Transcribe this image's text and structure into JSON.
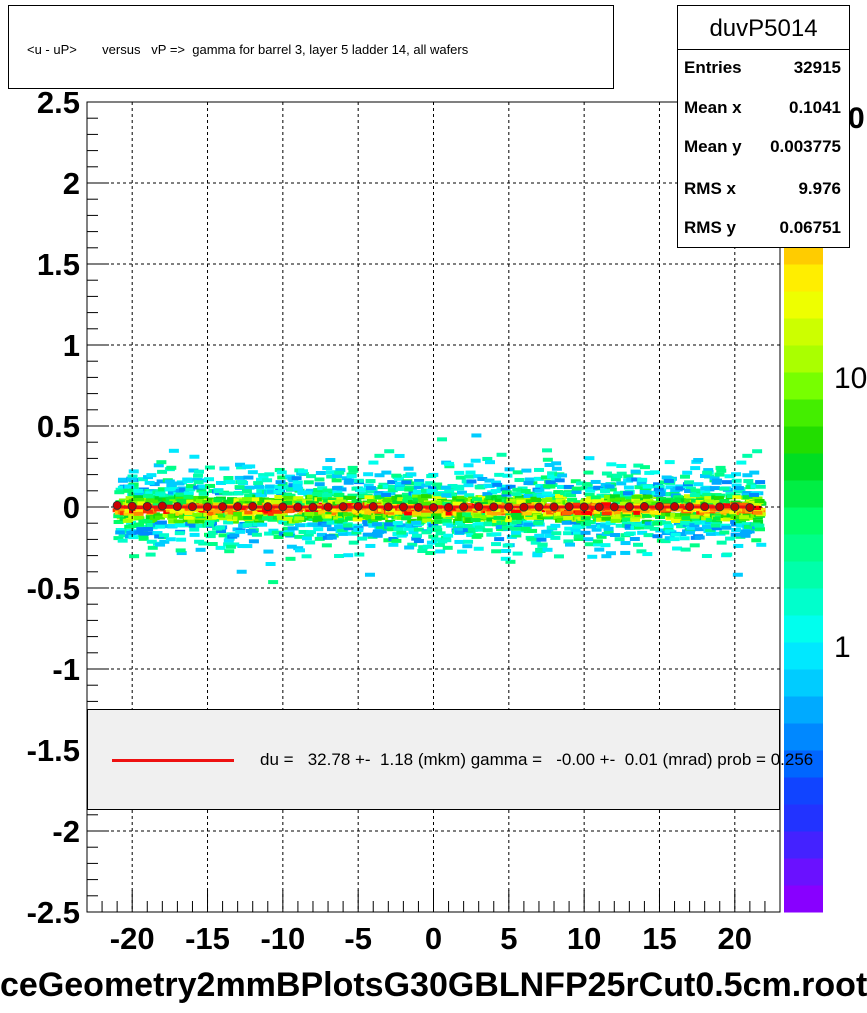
{
  "title": "<u - uP>       versus   vP =>  gamma for barrel 3, layer 5 ladder 14, all wafers",
  "stats": {
    "name": "duvP5014",
    "rows": [
      {
        "label": "Entries",
        "value": "32915"
      },
      {
        "label": "Mean x",
        "value": "0.1041"
      },
      {
        "label": "Mean y",
        "value": "0.003775"
      },
      {
        "label": "RMS x",
        "value": "9.976"
      },
      {
        "label": "RMS y",
        "value": "0.06751"
      }
    ]
  },
  "fit_legend": "du =   32.78 +-  1.18 (mkm) gamma =   -0.00 +-  0.01 (mrad) prob = 0.256",
  "file_label": "ceGeometry2mmBPlotsG30GBLNFP25rCut0.5cm.root",
  "colors": {
    "fit_line": "#ee1111",
    "profile_marker": "#cc0000",
    "legend_bg": "#f0f0f0"
  },
  "chart_data": {
    "type": "heatmap",
    "xlim": [
      -23,
      23
    ],
    "ylim": [
      -2.5,
      2.5
    ],
    "x_ticks": [
      "-20",
      "-15",
      "-10",
      "-5",
      "0",
      "5",
      "10",
      "15",
      "20"
    ],
    "y_ticks": [
      "-2.5",
      "-2",
      "-1.5",
      "-1",
      "-0.5",
      "0",
      "0.5",
      "1",
      "1.5",
      "2",
      "2.5"
    ],
    "grid": true,
    "log_z": true,
    "z_ticks": [
      "1",
      "10"
    ],
    "z_tick_values": [
      1,
      10
    ],
    "z_max_label": "0",
    "profile": {
      "x": [
        -21,
        -20,
        -19,
        -18,
        -17,
        -16,
        -15,
        -14,
        -13,
        -12,
        -11,
        -10,
        -9,
        -8,
        -7,
        -6,
        -5,
        -4,
        -3,
        -2,
        -1,
        0,
        1,
        2,
        3,
        4,
        5,
        6,
        7,
        8,
        9,
        10,
        11,
        12,
        13,
        14,
        15,
        16,
        17,
        18,
        19,
        20,
        21
      ],
      "y": [
        0.01,
        0.005,
        0.004,
        0.006,
        0.003,
        0.002,
        0.001,
        0.002,
        0.003,
        0.004,
        0.002,
        0.001,
        0.0,
        -0.001,
        0.0,
        0.002,
        0.004,
        0.003,
        0.001,
        0.0,
        -0.002,
        -0.003,
        -0.002,
        0.0,
        0.002,
        0.001,
        0.0,
        -0.001,
        0.0,
        0.001,
        0.002,
        0.001,
        0.0,
        0.001,
        0.002,
        0.003,
        0.004,
        0.003,
        0.002,
        0.002,
        0.001,
        0.0,
        -0.003
      ]
    },
    "fit_line": {
      "du_mkm": 32.78,
      "gamma_mrad": 0.0
    }
  }
}
